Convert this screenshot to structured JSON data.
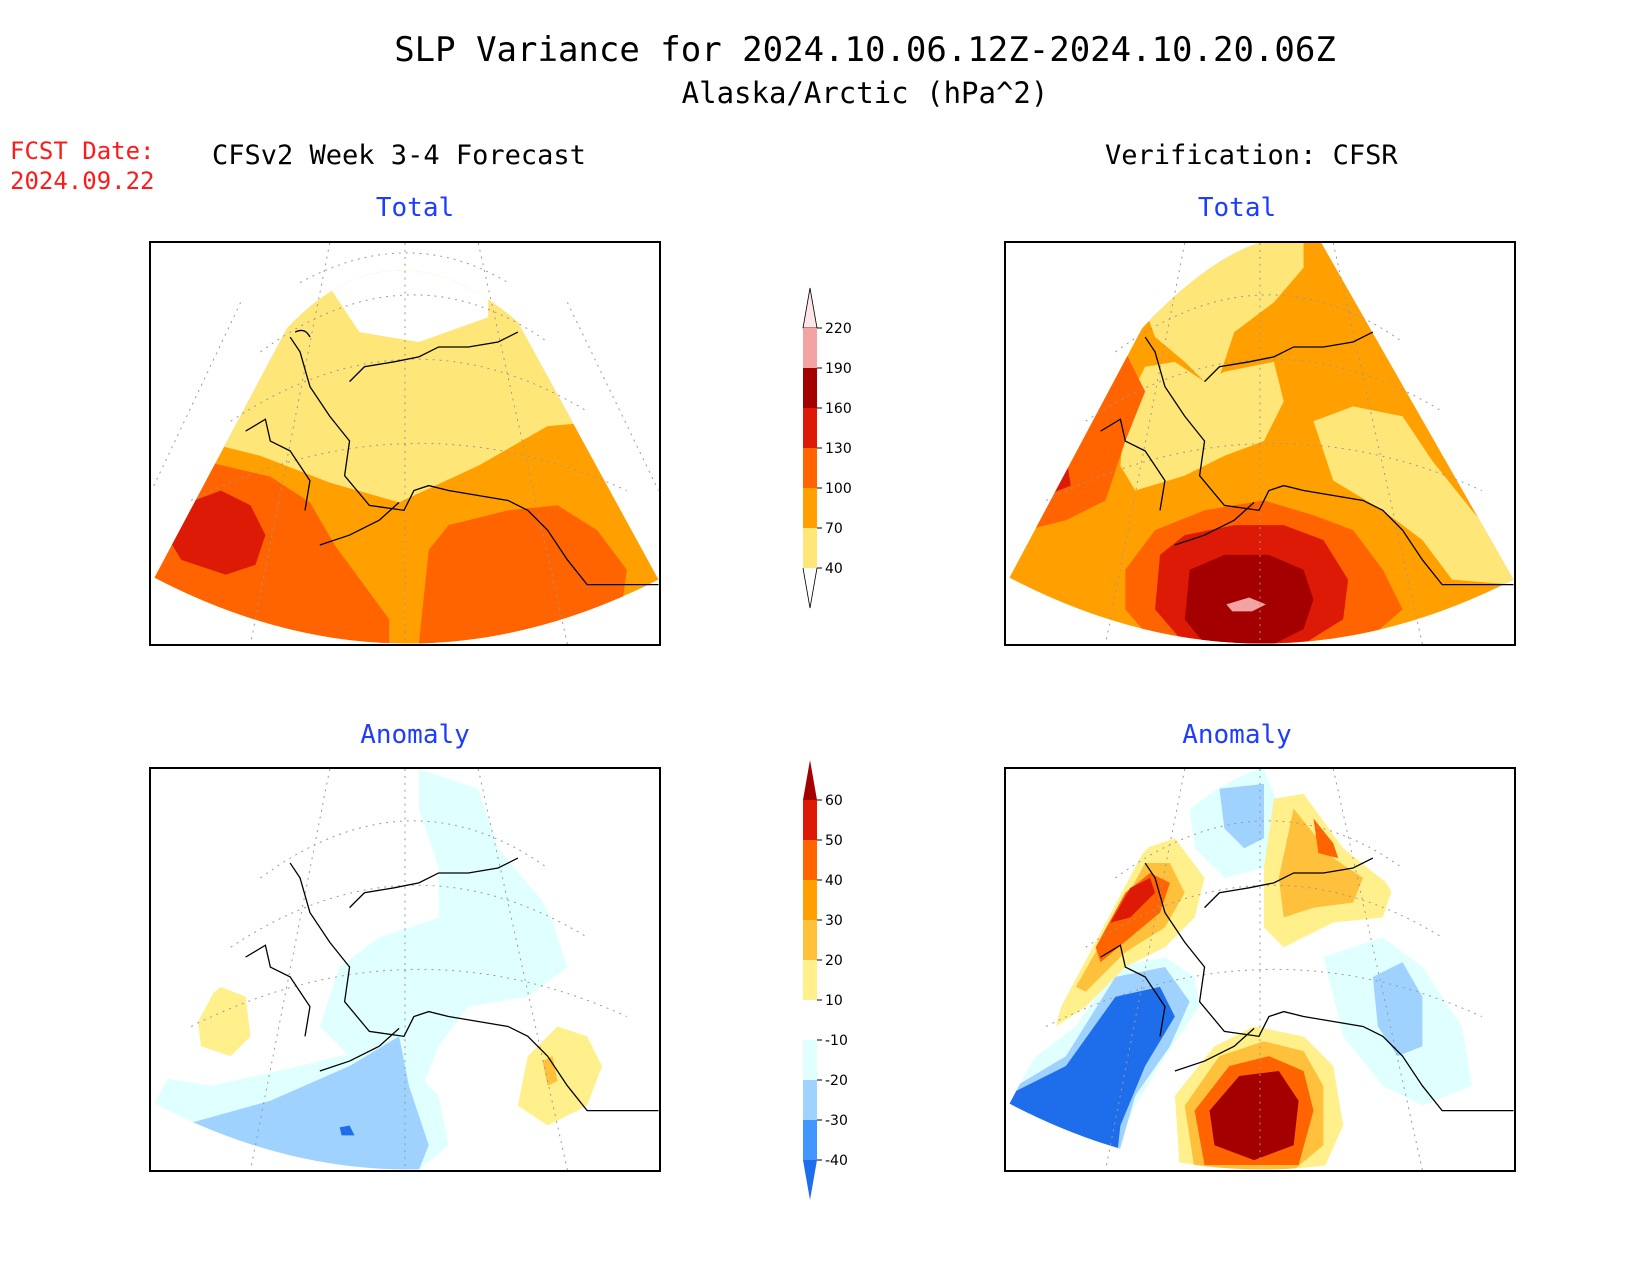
{
  "title": {
    "line1": "SLP Variance for 2024.10.06.12Z-2024.10.20.06Z",
    "line2": "Alaska/Arctic (hPa^2)"
  },
  "fcst": {
    "label": "FCST Date:",
    "date": "2024.09.22"
  },
  "forecast_header": "CFSv2 Week 3-4 Forecast",
  "verification_header": "Verification: CFSR",
  "panels": {
    "forecast_total": "Total",
    "verification_total": "Total",
    "forecast_anomaly": "Anomaly",
    "verification_anomaly": "Anomaly"
  },
  "colorbar_total": {
    "labels": [
      "220",
      "190",
      "160",
      "130",
      "100",
      "70",
      "40"
    ],
    "colors": [
      "#ffe6e6",
      "#f4a3a3",
      "#a50000",
      "#dd1a05",
      "#ff6400",
      "#ffa000",
      "#ffe678"
    ]
  },
  "colorbar_anomaly": {
    "labels": [
      "60",
      "50",
      "40",
      "30",
      "20",
      "10",
      "-10",
      "-20",
      "-30",
      "-40"
    ],
    "colors": [
      "#a50000",
      "#dd1a05",
      "#ff6400",
      "#ffa000",
      "#ffc03c",
      "#fff08c",
      "#ffffff",
      "#e0ffff",
      "#a0d2ff",
      "#4196ff",
      "#1e6eeb"
    ]
  },
  "palette": {
    "fill_40_70": "#ffe678",
    "fill_70_100": "#ffa000",
    "fill_100_130": "#ff6400",
    "fill_130_160": "#dd1a05",
    "fill_160_190": "#a50000",
    "fill_190_220": "#f4a3a3",
    "anom_pos_10_20": "#fff08c",
    "anom_pos_20_30": "#ffc03c",
    "anom_neg_10_20": "#e0ffff",
    "anom_neg_20_30": "#a0d2ff",
    "anom_neg_30_40": "#4196ff",
    "anom_neg_lt_40": "#1e6eeb"
  }
}
